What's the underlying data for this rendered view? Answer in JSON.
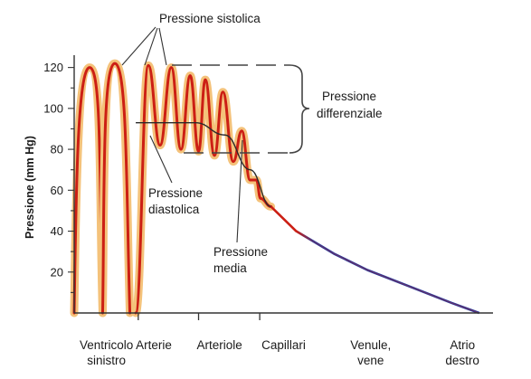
{
  "colors": {
    "pressure_curve": "#cc1f14",
    "pressure_fill": "#f4c27a",
    "venous_curve": "#2a3a9a",
    "axis": "#333333",
    "text": "#1a1a1a",
    "guides": "#444444"
  },
  "chart_data": {
    "type": "line",
    "title": "",
    "ylabel": "Pressione (mm Hg)",
    "xlabel": "",
    "ylim": [
      0,
      130
    ],
    "yticks": [
      20,
      40,
      60,
      80,
      100,
      120
    ],
    "grid": false,
    "categories": [
      {
        "label": "Ventricolo",
        "label2": "sinistro"
      },
      {
        "label": "Arterie",
        "label2": ""
      },
      {
        "label": "Arteriole",
        "label2": ""
      },
      {
        "label": "Capillari",
        "label2": ""
      },
      {
        "label": "Venule,",
        "label2": "vene"
      },
      {
        "label": "Atrio",
        "label2": "destro"
      }
    ],
    "category_x_range": [
      0,
      10
    ],
    "category_centers": [
      0.77,
      1.9,
      3.47,
      5.0,
      7.08,
      9.27
    ],
    "category_dividers": [
      1.53,
      2.97,
      4.43
    ],
    "ventricle_cycles": [
      {
        "x_start": 0.0,
        "x_peak": 0.37,
        "x_end": 0.68,
        "systolic": 120,
        "diastolic": 0
      },
      {
        "x_start": 0.68,
        "x_peak": 0.97,
        "x_end": 1.33,
        "systolic": 122,
        "diastolic": 0
      }
    ],
    "arterial_oscillation": {
      "peaks": [
        {
          "x": 1.77,
          "y": 121
        },
        {
          "x": 2.32,
          "y": 120
        },
        {
          "x": 2.77,
          "y": 116
        },
        {
          "x": 3.13,
          "y": 114
        },
        {
          "x": 3.55,
          "y": 108
        },
        {
          "x": 4.0,
          "y": 89
        },
        {
          "x": 4.35,
          "y": 65
        }
      ],
      "troughs": [
        {
          "x": 1.47,
          "y": 0
        },
        {
          "x": 2.05,
          "y": 82
        },
        {
          "x": 2.55,
          "y": 80
        },
        {
          "x": 2.97,
          "y": 79
        },
        {
          "x": 3.35,
          "y": 77
        },
        {
          "x": 3.8,
          "y": 74
        },
        {
          "x": 4.2,
          "y": 65
        },
        {
          "x": 4.45,
          "y": 56
        }
      ]
    },
    "mean_pressure": [
      {
        "x": 1.47,
        "y": 93
      },
      {
        "x": 2.2,
        "y": 93
      },
      {
        "x": 2.9,
        "y": 93
      },
      {
        "x": 3.6,
        "y": 87
      },
      {
        "x": 4.2,
        "y": 70
      },
      {
        "x": 4.7,
        "y": 52
      }
    ],
    "venous_pressure": [
      {
        "x": 4.7,
        "y": 52
      },
      {
        "x": 5.3,
        "y": 40
      },
      {
        "x": 6.2,
        "y": 29
      },
      {
        "x": 7.0,
        "y": 21
      },
      {
        "x": 8.0,
        "y": 13
      },
      {
        "x": 9.0,
        "y": 5
      },
      {
        "x": 9.67,
        "y": 0
      }
    ],
    "annotations": {
      "systolic": "Pressione sistolica",
      "diastolic_line1": "Pressione",
      "diastolic_line2": "diastolica",
      "mean_line1": "Pressione",
      "mean_line2": "media",
      "differential_line1": "Pressione",
      "differential_line2": "differenziale"
    }
  }
}
